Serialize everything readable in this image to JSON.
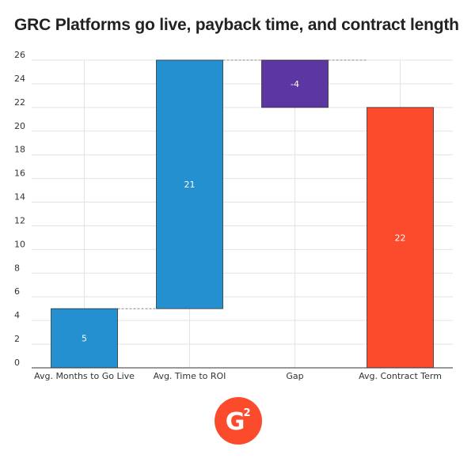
{
  "chart_data": {
    "type": "bar",
    "subtype": "waterfall",
    "title": "GRC Platforms go live, payback time, and contract length",
    "xlabel": "",
    "ylabel": "",
    "ylim": [
      0,
      26
    ],
    "yticks": [
      0,
      2,
      4,
      6,
      8,
      10,
      12,
      14,
      16,
      18,
      20,
      22,
      24,
      26
    ],
    "grid": true,
    "categories": [
      "Avg. Months to Go Live",
      "Avg. Time to ROI",
      "Gap",
      "Avg. Contract Term"
    ],
    "bars": [
      {
        "category": "Avg. Months to Go Live",
        "start": 0,
        "end": 5,
        "label": "5",
        "color": "#2590d0"
      },
      {
        "category": "Avg. Time to ROI",
        "start": 5,
        "end": 26,
        "label": "21",
        "color": "#2590d0"
      },
      {
        "category": "Gap",
        "start": 22,
        "end": 26,
        "label": "-4",
        "color": "#5c37a1"
      },
      {
        "category": "Avg. Contract Term",
        "start": 0,
        "end": 22,
        "label": "22",
        "color": "#fb4a2c"
      }
    ],
    "connector_color": "#888888"
  },
  "logo": {
    "icon": "g2-logo-icon",
    "text": "G",
    "superscript": "2",
    "color": "#fb4a2c"
  }
}
